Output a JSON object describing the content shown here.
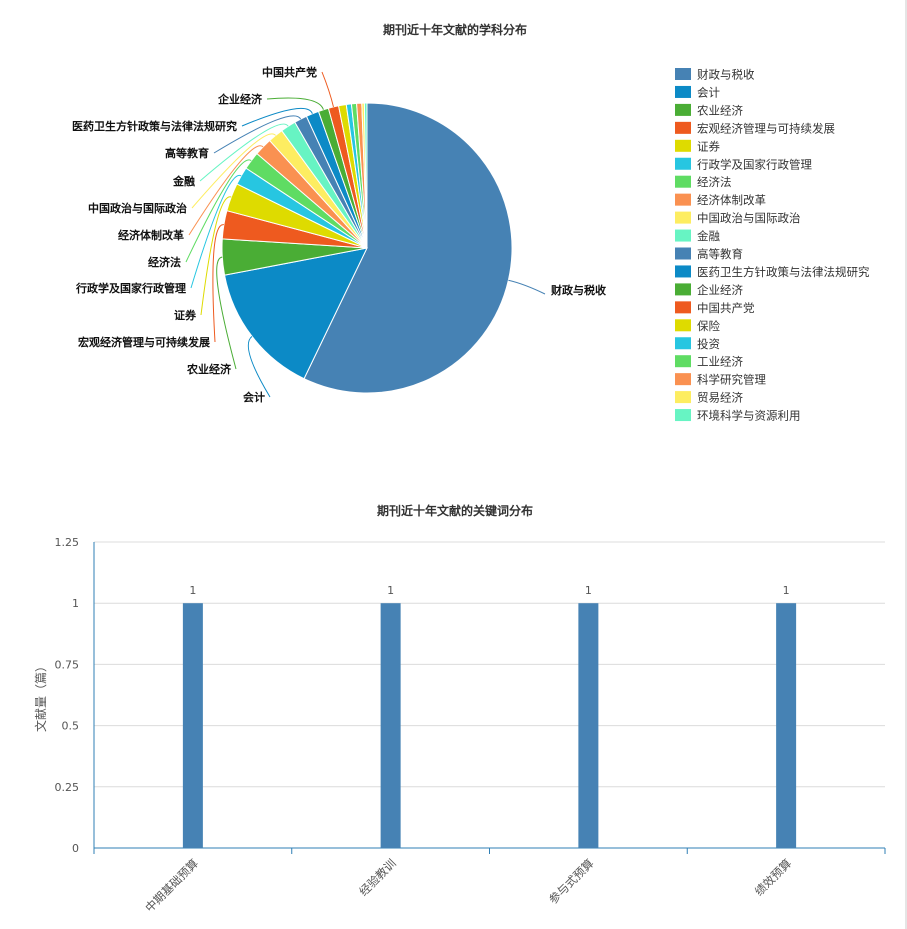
{
  "chart_data": [
    {
      "type": "pie",
      "title": "期刊近十年文献的学科分布",
      "legend_position": "right",
      "categories": [
        "财政与税收",
        "会计",
        "农业经济",
        "宏观经济管理与可持续发展",
        "证券",
        "行政学及国家行政管理",
        "经济法",
        "经济体制改革",
        "中国政治与国际政治",
        "金融",
        "高等教育",
        "医药卫生方针政策与法律法规研究",
        "企业经济",
        "中国共产党",
        "保险",
        "投资",
        "工业经济",
        "科学研究管理",
        "贸易经济",
        "环境科学与资源利用"
      ],
      "values": [
        200,
        52,
        14,
        11,
        11,
        7,
        7,
        7,
        6,
        6,
        5,
        5,
        4,
        4,
        3,
        2,
        2,
        2,
        1,
        1
      ],
      "colors": [
        "#4682b4",
        "#0c8ac6",
        "#4aad35",
        "#ee5a1f",
        "#dedb00",
        "#27c6e1",
        "#5fdc63",
        "#fa9151",
        "#fded61",
        "#67f4c3",
        "#4682b4",
        "#0c8ac6",
        "#4aad35",
        "#ee5a1f",
        "#dedb00",
        "#27c6e1",
        "#5fdc63",
        "#fa9151",
        "#fded61",
        "#67f4c3"
      ],
      "labeled_categories": [
        "财政与税收",
        "会计",
        "农业经济",
        "宏观经济管理与可持续发展",
        "证券",
        "行政学及国家行政管理",
        "经济法",
        "经济体制改革",
        "中国政治与国际政治",
        "金融",
        "高等教育",
        "医药卫生方针政策与法律法规研究",
        "企业经济",
        "中国共产党"
      ]
    },
    {
      "type": "bar",
      "title": "期刊近十年文献的关键词分布",
      "ylabel": "文献量（篇）",
      "xlabel": "",
      "categories": [
        "中期基础预算",
        "经验教训",
        "参与式预算",
        "绩效预算"
      ],
      "values": [
        1,
        1,
        1,
        1
      ],
      "data_labels": [
        "1",
        "1",
        "1",
        "1"
      ],
      "ylim": [
        0,
        1.25
      ],
      "yticks": [
        0,
        0.25,
        0.5,
        0.75,
        1,
        1.25
      ],
      "ytick_labels": [
        "0",
        "0.25",
        "0.5",
        "0.75",
        "1",
        "1.25"
      ],
      "grid": true,
      "bar_color": "#4682b4"
    }
  ]
}
